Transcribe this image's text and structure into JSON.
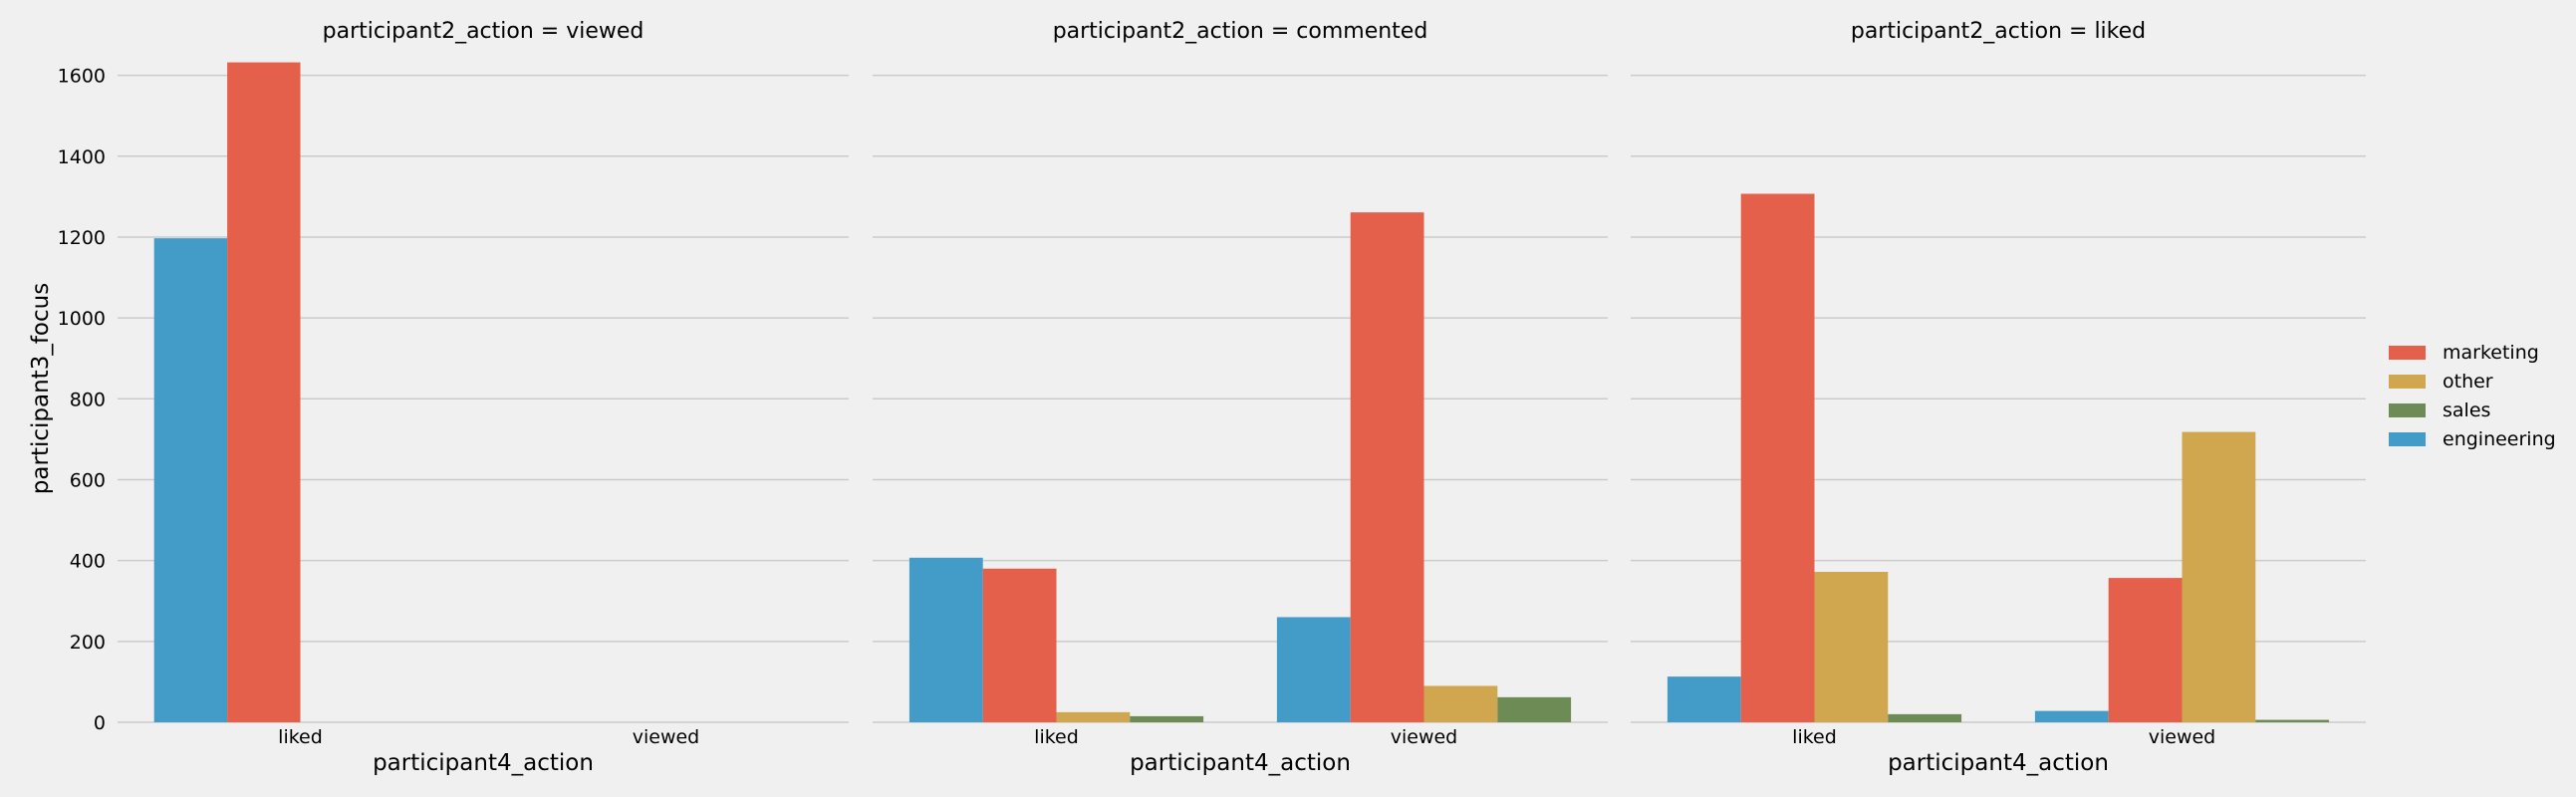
{
  "colors": {
    "background": "#f0f0f0",
    "grid": "#cbcbcb",
    "marketing": "#e5604a",
    "other": "#d0a64f",
    "sales": "#6d8b55",
    "engineering": "#439bc8"
  },
  "chart_data": {
    "type": "bar",
    "ylabel": "participant3_focus",
    "xlabel": "participant4_action",
    "ylim": [
      0,
      1700
    ],
    "yticks": [
      0,
      200,
      400,
      600,
      800,
      1000,
      1200,
      1400,
      1600
    ],
    "categories": [
      "liked",
      "viewed"
    ],
    "hue_order": [
      "engineering",
      "marketing",
      "other",
      "sales"
    ],
    "legend": {
      "placement": "right",
      "entries": [
        "marketing",
        "other",
        "sales",
        "engineering"
      ]
    },
    "grid": true,
    "facets": [
      {
        "title": "participant2_action = viewed",
        "series": [
          {
            "name": "engineering",
            "values": [
              1197,
              null
            ]
          },
          {
            "name": "marketing",
            "values": [
              1632,
              null
            ]
          },
          {
            "name": "other",
            "values": [
              null,
              null
            ]
          },
          {
            "name": "sales",
            "values": [
              null,
              null
            ]
          }
        ]
      },
      {
        "title": "participant2_action = commented",
        "series": [
          {
            "name": "engineering",
            "values": [
              407,
              260
            ]
          },
          {
            "name": "marketing",
            "values": [
              380,
              1261
            ]
          },
          {
            "name": "other",
            "values": [
              25,
              90
            ]
          },
          {
            "name": "sales",
            "values": [
              15,
              62
            ]
          }
        ]
      },
      {
        "title": "participant2_action = liked",
        "series": [
          {
            "name": "engineering",
            "values": [
              113,
              28
            ]
          },
          {
            "name": "marketing",
            "values": [
              1307,
              357
            ]
          },
          {
            "name": "other",
            "values": [
              372,
              718
            ]
          },
          {
            "name": "sales",
            "values": [
              20,
              6
            ]
          }
        ]
      }
    ]
  }
}
